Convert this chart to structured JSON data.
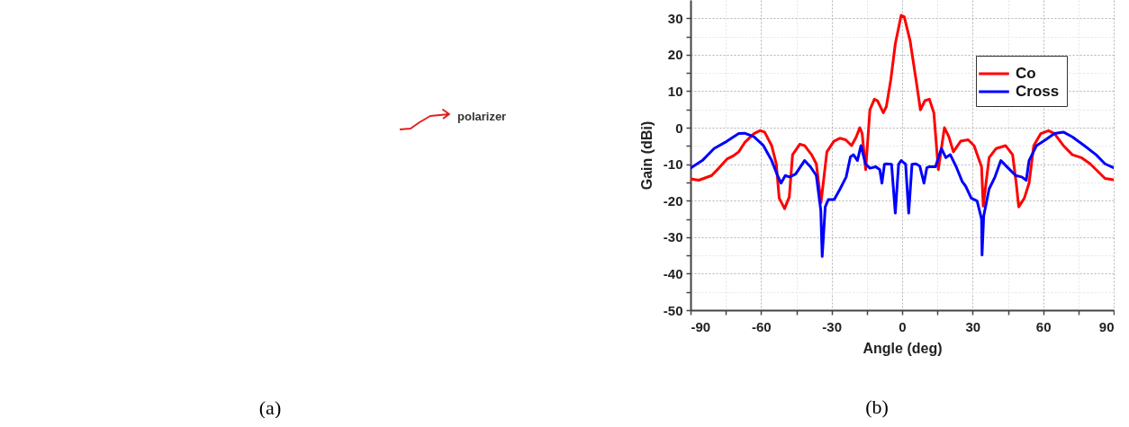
{
  "chart_data": [
    {
      "type": "other",
      "annotations": [
        "polarizer",
        "(a)"
      ]
    },
    {
      "type": "line",
      "xlabel": "Angle (deg)",
      "ylabel": "Gain (dBi)",
      "annotations": [
        "(b)"
      ],
      "xlim": [
        -90,
        90
      ],
      "ylim": [
        -50,
        35
      ],
      "xticks": [
        -90,
        {
          "value": -75,
          "label": null
        },
        -60,
        {
          "value": -45,
          "label": null
        },
        -30,
        {
          "value": -15,
          "label": null
        },
        0,
        {
          "value": 15,
          "label": null
        },
        30,
        {
          "value": 45,
          "label": null
        },
        60,
        {
          "value": 75,
          "label": null
        },
        90
      ],
      "yticks": [
        -50,
        {
          "value": -45,
          "label": null
        },
        -40,
        {
          "value": -35,
          "label": null
        },
        -30,
        {
          "value": -25,
          "label": null
        },
        -20,
        {
          "value": -15,
          "label": null
        },
        -10,
        {
          "value": -5,
          "label": null
        },
        0,
        {
          "value": 5,
          "label": null
        },
        10,
        {
          "value": 15,
          "label": null
        },
        20,
        {
          "value": 25,
          "label": null
        },
        30
      ],
      "grid": true,
      "legend": "top right",
      "line_style": "solid",
      "series": [
        {
          "name": "Co",
          "color": "#ff0000",
          "x": [
            -90,
            -86.5,
            -81,
            -78,
            -74.5,
            -72,
            -69.5,
            -67,
            -63,
            -60.5,
            -58.5,
            -55.5,
            -53.5,
            -52.3,
            -50,
            -48,
            -46.6,
            -43.5,
            -41.5,
            -38.5,
            -36.5,
            -34.5,
            -32,
            -29,
            -26.5,
            -24,
            -21.5,
            -19.5,
            -18,
            -17,
            -15.5,
            -13.7,
            -11.8,
            -10.5,
            -8,
            -6.7,
            -4.8,
            -2.9,
            -0.4,
            0.9,
            3.4,
            5.9,
            7.8,
            9.7,
            11.6,
            13.5,
            15.4,
            18,
            19.9,
            21.8,
            24.9,
            28.1,
            30.6,
            33.8,
            34.5,
            37,
            40,
            44,
            47,
            48.5,
            49.6,
            52,
            54,
            56,
            59,
            62.3,
            64.8,
            68.6,
            72.4,
            76.2,
            80,
            83.8,
            86.3,
            90
          ],
          "values": [
            -14,
            -14.4,
            -13.1,
            -11.1,
            -8.6,
            -7.8,
            -6.6,
            -4.1,
            -1.6,
            -0.8,
            -1.2,
            -4.9,
            -10,
            -19.3,
            -22.2,
            -19,
            -7.4,
            -4.5,
            -4.9,
            -7.4,
            -9.9,
            -20.5,
            -6.6,
            -3.7,
            -2.9,
            -3.3,
            -4.9,
            -2.5,
            0,
            -1.6,
            -11.5,
            4.9,
            7.8,
            7.4,
            4.1,
            5.8,
            13.2,
            23,
            30.8,
            30.4,
            23.8,
            13.2,
            4.9,
            7.4,
            7.8,
            4.1,
            -11.5,
            0,
            -2.5,
            -6.6,
            -3.7,
            -3.3,
            -4.9,
            -10.7,
            -21.5,
            -8.2,
            -5.7,
            -4.9,
            -7.4,
            -15,
            -21.7,
            -19.3,
            -15.2,
            -4.9,
            -1.6,
            -0.8,
            -1.6,
            -4.9,
            -7.4,
            -8.2,
            -9.9,
            -12.3,
            -13.9,
            -14.3
          ]
        },
        {
          "name": "Cross",
          "color": "#0000ff",
          "x": [
            -90,
            -85,
            -80,
            -74.5,
            -69.5,
            -67,
            -63,
            -59,
            -55.5,
            -53,
            -51.5,
            -49.7,
            -47.9,
            -45.3,
            -41.5,
            -39,
            -36.5,
            -34.6,
            -34,
            -32.7,
            -31.4,
            -28.9,
            -26.4,
            -23.8,
            -22,
            -20.7,
            -19,
            -17.5,
            -15.6,
            -13.7,
            -11.2,
            -9.5,
            -8.6,
            -7.5,
            -6.7,
            -4.5,
            -2.9,
            -1.5,
            -0.4,
            1.5,
            2.8,
            4.2,
            5.9,
            7.5,
            9.3,
            10.5,
            11.6,
            14.2,
            16.7,
            18.6,
            20.5,
            23,
            25.6,
            27,
            29.4,
            31.9,
            33.8,
            34,
            34.7,
            37,
            39.5,
            42,
            45.2,
            48.3,
            50.9,
            52.8,
            54,
            57.2,
            61,
            64.8,
            68.6,
            72.4,
            77.5,
            82.5,
            86.3,
            90
          ],
          "values": [
            -11.1,
            -9,
            -5.7,
            -3.7,
            -1.6,
            -1.5,
            -2.5,
            -4.9,
            -9,
            -13.1,
            -15.2,
            -13.1,
            -13.5,
            -12.7,
            -9,
            -10.7,
            -13.1,
            -22.6,
            -35.3,
            -21.7,
            -19.7,
            -19.7,
            -16.8,
            -13.5,
            -8,
            -7.4,
            -9,
            -4.9,
            -9.9,
            -11.1,
            -10.7,
            -11.5,
            -15.2,
            -10,
            -9.9,
            -10,
            -23.4,
            -10,
            -9,
            -10,
            -23.4,
            -10,
            -9.9,
            -10.5,
            -15.2,
            -11,
            -10.7,
            -10.7,
            -5.7,
            -8.2,
            -7.4,
            -10.7,
            -14.8,
            -16,
            -19.3,
            -20.1,
            -25,
            -34.9,
            -24.2,
            -16.8,
            -13.5,
            -9,
            -11.1,
            -13.1,
            -13.5,
            -14.4,
            -9,
            -4.9,
            -3.3,
            -1.6,
            -1.2,
            -2.5,
            -4.9,
            -7.4,
            -9.9,
            -11
          ]
        }
      ]
    }
  ]
}
